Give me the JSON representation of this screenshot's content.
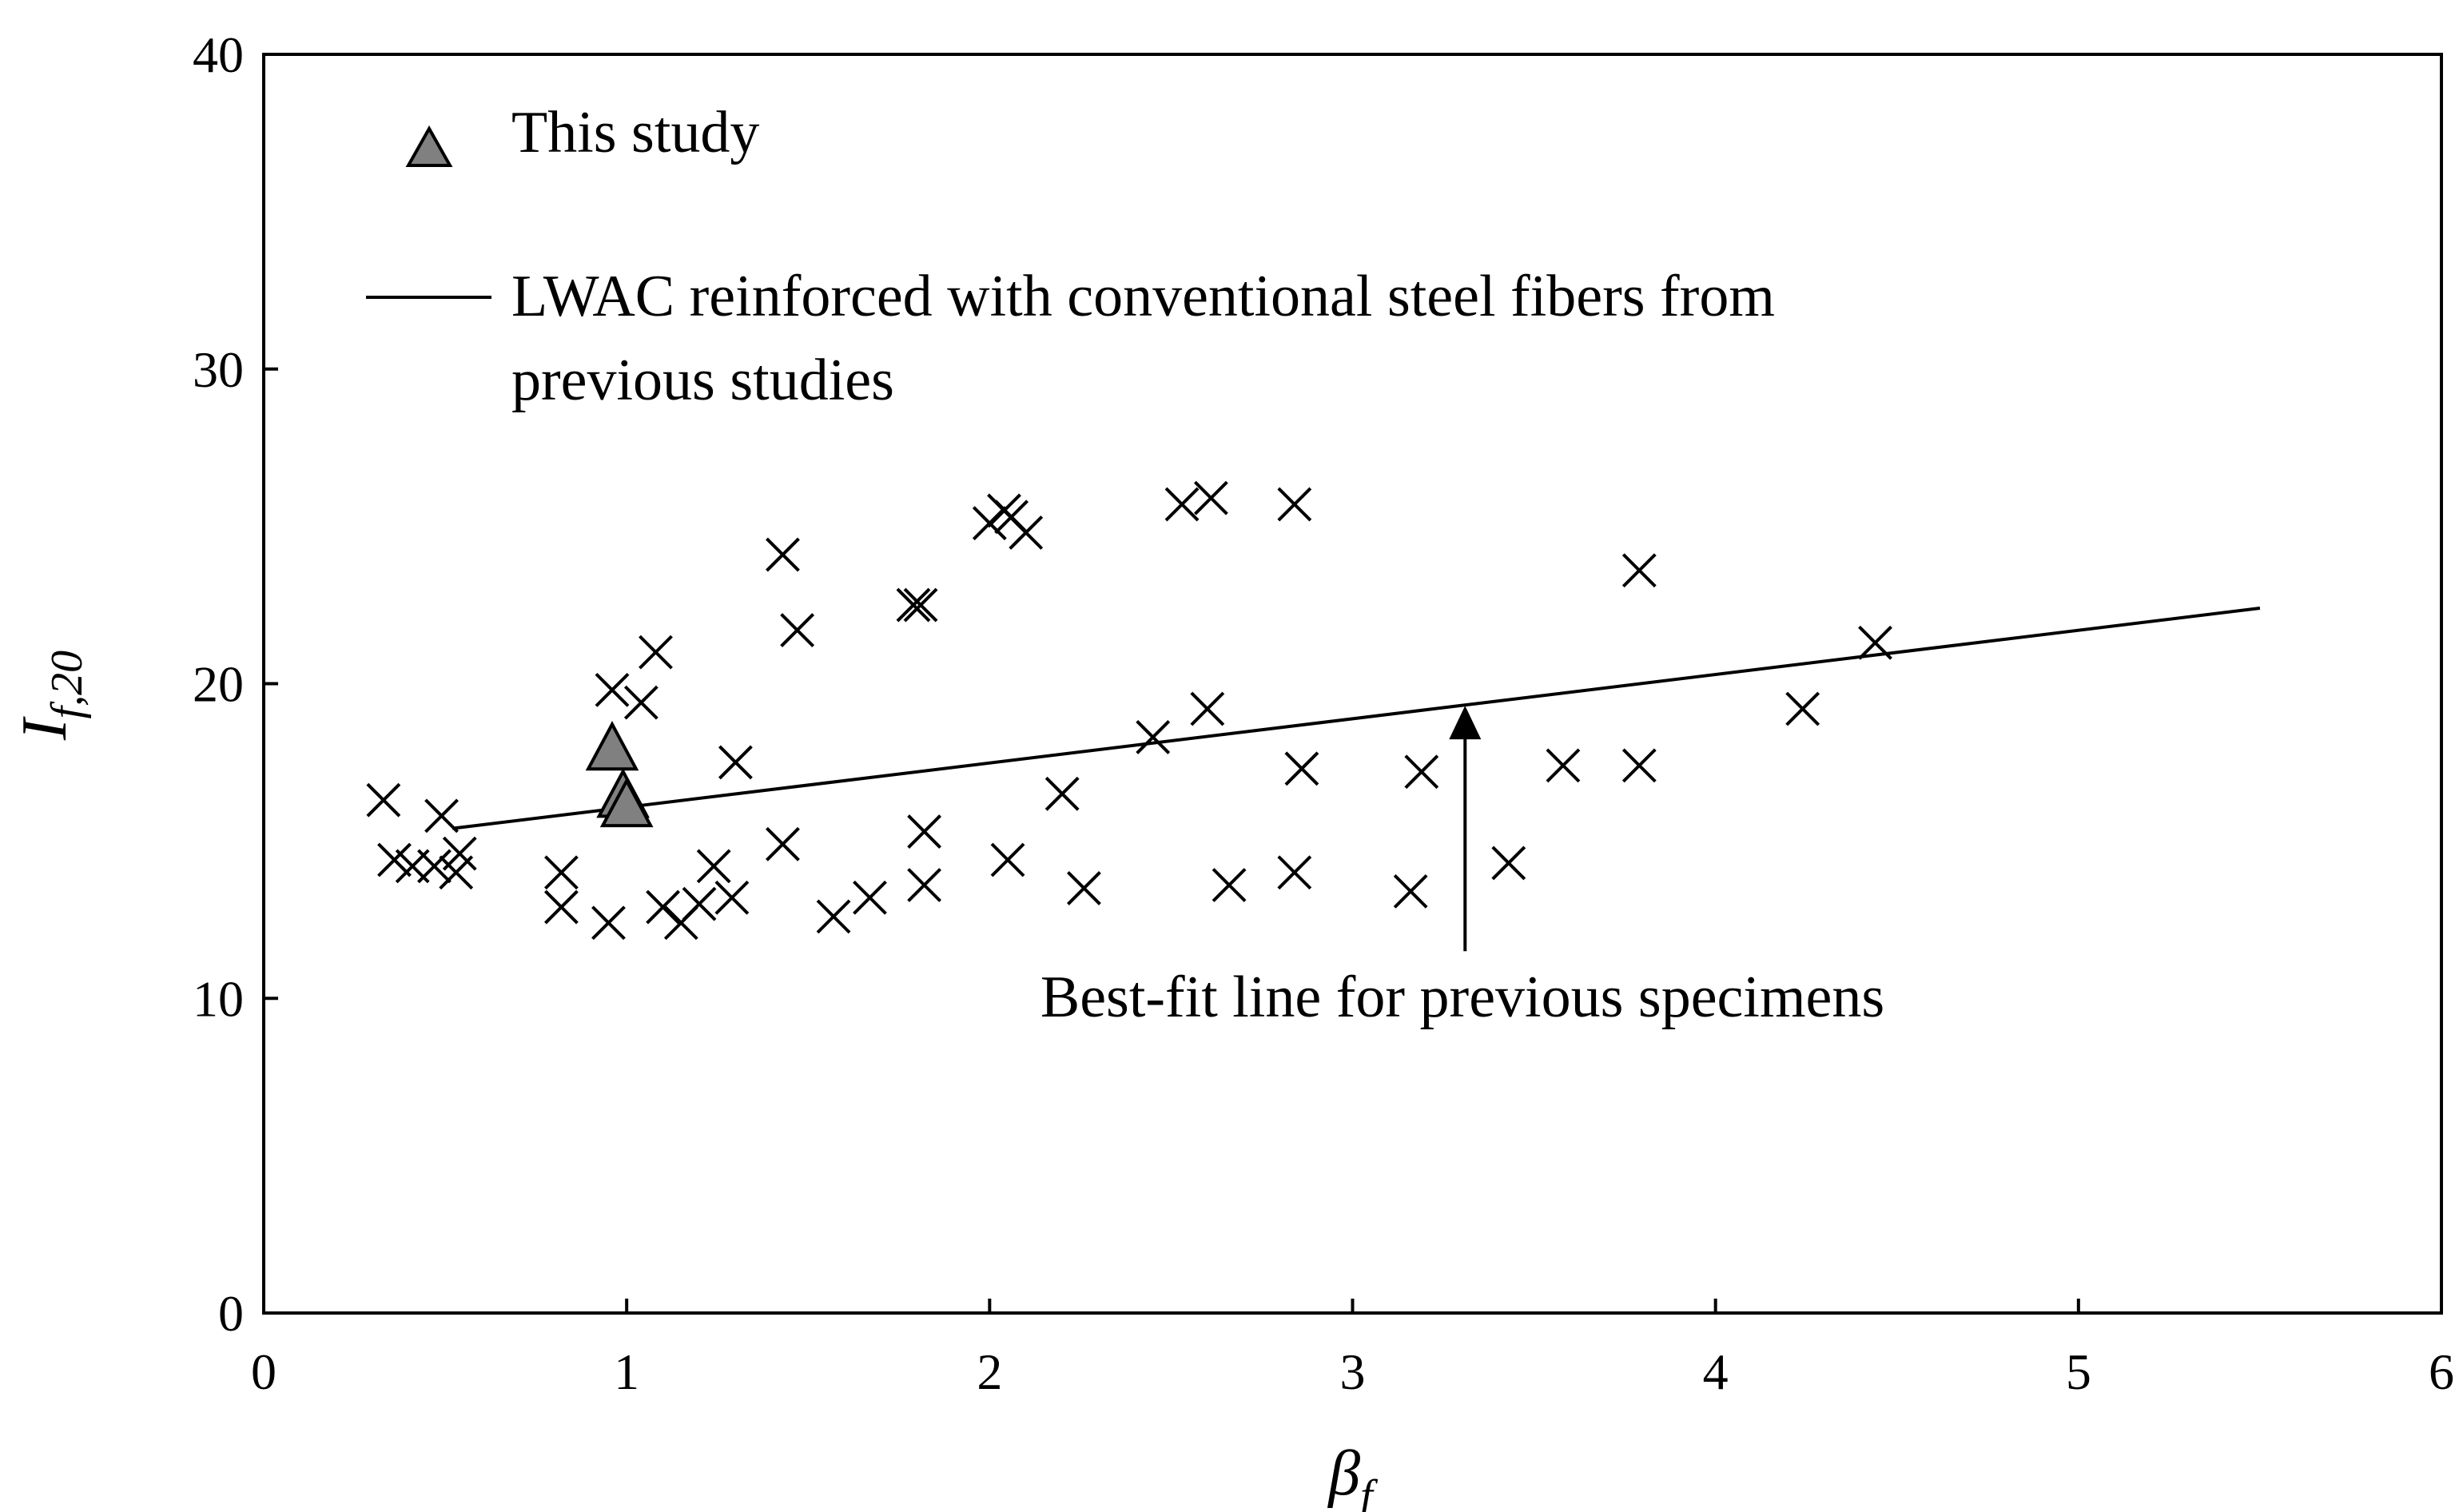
{
  "chart_data": {
    "type": "scatter",
    "x_axis": {
      "label_main": "β",
      "label_sub": "f",
      "range": [
        0,
        6
      ],
      "ticks": [
        "0",
        "1",
        "2",
        "3",
        "4",
        "5",
        "6"
      ]
    },
    "y_axis": {
      "label_main": "I",
      "label_sub": "f,20",
      "range": [
        0,
        40
      ],
      "ticks": [
        "0",
        "10",
        "20",
        "30",
        "40"
      ]
    },
    "grid": false,
    "legend": {
      "placement": "top-left",
      "entries": [
        {
          "label": "This study",
          "marker": "triangle"
        },
        {
          "label_line1": "LWAC reinforced with conventional steel fibers from",
          "label_line2": "previous studies",
          "marker": "x"
        }
      ]
    },
    "series": [
      {
        "name": "This study",
        "marker": "triangle",
        "color": "#808080",
        "points": [
          [
            0.96,
            18.0
          ],
          [
            0.99,
            16.5
          ],
          [
            1.0,
            16.2
          ]
        ]
      },
      {
        "name": "LWAC reinforced with conventional steel fibers from previous studies",
        "marker": "x",
        "color": "#000000",
        "points": [
          [
            0.33,
            16.3
          ],
          [
            0.36,
            14.4
          ],
          [
            0.41,
            14.2
          ],
          [
            0.49,
            15.8
          ],
          [
            0.47,
            14.2
          ],
          [
            0.53,
            14.0
          ],
          [
            0.54,
            14.6
          ],
          [
            0.82,
            14.0
          ],
          [
            0.82,
            12.9
          ],
          [
            0.95,
            12.4
          ],
          [
            0.96,
            19.8
          ],
          [
            1.04,
            19.4
          ],
          [
            1.08,
            21.0
          ],
          [
            1.1,
            12.9
          ],
          [
            1.15,
            12.4
          ],
          [
            1.2,
            13.0
          ],
          [
            1.24,
            14.2
          ],
          [
            1.29,
            13.2
          ],
          [
            1.3,
            17.5
          ],
          [
            1.43,
            24.1
          ],
          [
            1.43,
            14.9
          ],
          [
            1.47,
            21.7
          ],
          [
            1.57,
            12.6
          ],
          [
            1.67,
            13.2
          ],
          [
            1.79,
            22.5
          ],
          [
            1.81,
            22.5
          ],
          [
            1.82,
            15.3
          ],
          [
            1.82,
            13.6
          ],
          [
            2.0,
            25.1
          ],
          [
            2.04,
            25.5
          ],
          [
            2.06,
            25.3
          ],
          [
            2.1,
            24.8
          ],
          [
            2.05,
            14.4
          ],
          [
            2.2,
            16.5
          ],
          [
            2.26,
            13.5
          ],
          [
            2.45,
            18.3
          ],
          [
            2.53,
            25.7
          ],
          [
            2.61,
            25.9
          ],
          [
            2.6,
            19.2
          ],
          [
            2.66,
            13.6
          ],
          [
            2.84,
            25.7
          ],
          [
            2.86,
            17.3
          ],
          [
            2.84,
            14.0
          ],
          [
            3.16,
            13.4
          ],
          [
            3.19,
            17.2
          ],
          [
            3.43,
            14.3
          ],
          [
            3.58,
            17.4
          ],
          [
            3.79,
            23.6
          ],
          [
            3.79,
            17.4
          ],
          [
            4.24,
            19.2
          ],
          [
            4.44,
            21.3
          ]
        ]
      }
    ],
    "trend_line": {
      "x": [
        0.52,
        5.5
      ],
      "y": [
        15.4,
        22.4
      ]
    },
    "annotation": {
      "text": "Best-fit line for previous specimens",
      "arrow_x": 3.31,
      "arrow_from_y": 11.5,
      "arrow_to_y": 19.3
    }
  }
}
